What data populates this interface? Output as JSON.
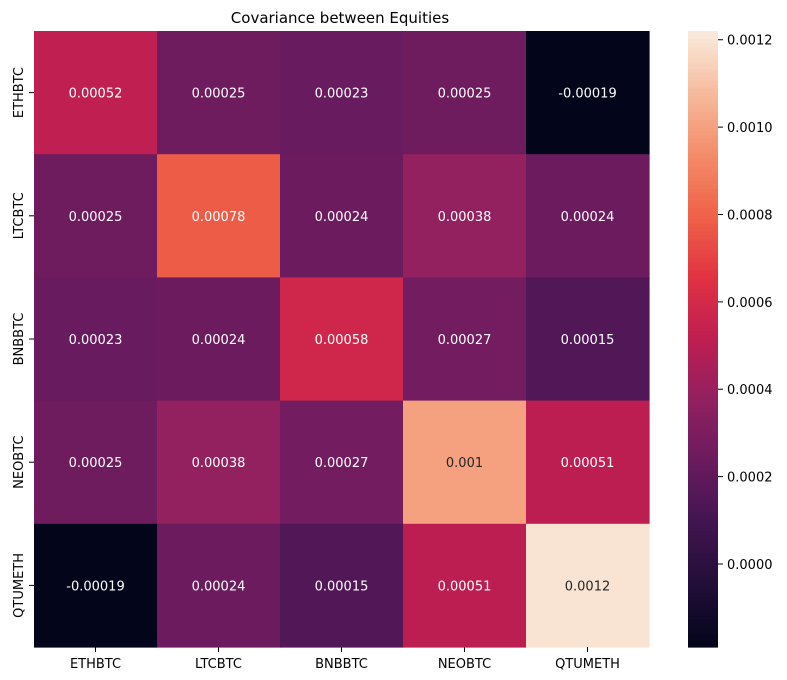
{
  "chart_data": {
    "type": "heatmap",
    "title": "Covariance between Equities",
    "xlabel": "",
    "ylabel": "",
    "x_categories": [
      "ETHBTC",
      "LTCBTC",
      "BNBBTC",
      "NEOBTC",
      "QTUMETH"
    ],
    "y_categories": [
      "ETHBTC",
      "LTCBTC",
      "BNBBTC",
      "NEOBTC",
      "QTUMETH"
    ],
    "values": [
      [
        0.00052,
        0.00025,
        0.00023,
        0.00025,
        -0.00019
      ],
      [
        0.00025,
        0.00078,
        0.00024,
        0.00038,
        0.00024
      ],
      [
        0.00023,
        0.00024,
        0.00058,
        0.00027,
        0.00015
      ],
      [
        0.00025,
        0.00038,
        0.00027,
        0.001,
        0.00051
      ],
      [
        -0.00019,
        0.00024,
        0.00015,
        0.00051,
        0.0012
      ]
    ],
    "annotations": [
      [
        "0.00052",
        "0.00025",
        "0.00023",
        "0.00025",
        "-0.00019"
      ],
      [
        "0.00025",
        "0.00078",
        "0.00024",
        "0.00038",
        "0.00024"
      ],
      [
        "0.00023",
        "0.00024",
        "0.00058",
        "0.00027",
        "0.00015"
      ],
      [
        "0.00025",
        "0.00038",
        "0.00027",
        "0.001",
        "0.00051"
      ],
      [
        "-0.00019",
        "0.00024",
        "0.00015",
        "0.00051",
        "0.0012"
      ]
    ],
    "colorbar": {
      "colormap": "rocket",
      "vmin": -0.00019,
      "vmax": 0.00122,
      "ticks": [
        0.0,
        0.0002,
        0.0004,
        0.0006,
        0.0008,
        0.001,
        0.0012
      ],
      "tick_labels": [
        "0.0000",
        "0.0002",
        "0.0004",
        "0.0006",
        "0.0008",
        "0.0010",
        "0.0012"
      ]
    },
    "grid": false
  }
}
